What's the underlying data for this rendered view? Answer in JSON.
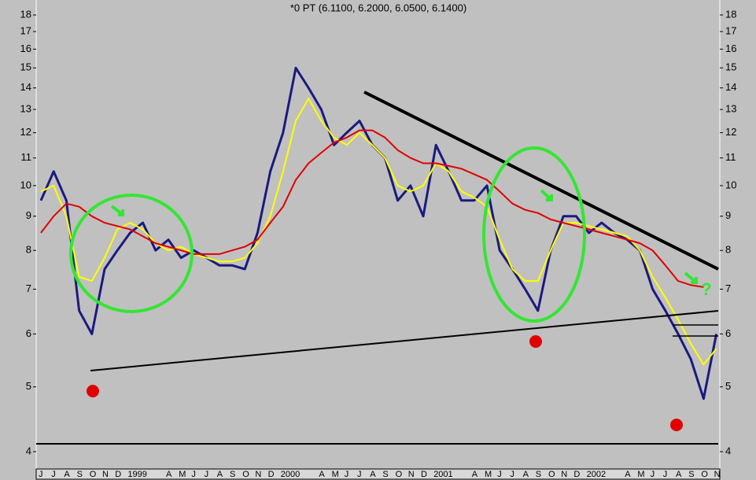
{
  "chart_data": {
    "type": "line",
    "title": "*0 PT (6.1100, 6.2000, 6.0500, 6.1400)",
    "log_scale": true,
    "grid": false,
    "categories": [
      "J",
      "J",
      "A",
      "S",
      "O",
      "N",
      "D",
      "1999",
      null,
      null,
      "A",
      "M",
      "J",
      "J",
      "A",
      "S",
      "O",
      "N",
      "D",
      "2000",
      null,
      null,
      "A",
      "M",
      "J",
      "J",
      "A",
      "S",
      "O",
      "N",
      "D",
      "2001",
      null,
      null,
      "A",
      "M",
      "J",
      "J",
      "A",
      "S",
      "O",
      "N",
      "D",
      "2002",
      null,
      null,
      "A",
      "M",
      "J",
      "J",
      "A",
      "S",
      "O",
      "N"
    ],
    "series": [
      {
        "color": "#1a1a80",
        "values": [
          9.5,
          10.5,
          9.5,
          6.5,
          6.0,
          7.5,
          8.0,
          8.5,
          8.8,
          8.0,
          8.3,
          7.8,
          8.0,
          7.8,
          7.6,
          7.6,
          7.5,
          8.5,
          10.5,
          12.0,
          15.0,
          14.0,
          13.0,
          11.5,
          12.0,
          12.5,
          11.5,
          11.0,
          9.5,
          10.0,
          9.0,
          11.5,
          10.5,
          9.5,
          9.5,
          10.0,
          8.0,
          7.5,
          7.0,
          6.5,
          8.0,
          9.0,
          9.0,
          8.5,
          8.8,
          8.5,
          8.3,
          8.0,
          7.0,
          6.5,
          6.0,
          5.5,
          4.8,
          6.0
        ]
      },
      {
        "color": "#ffff00",
        "values": [
          9.8,
          10.0,
          9.0,
          7.3,
          7.2,
          7.8,
          8.6,
          8.8,
          8.6,
          8.2,
          8.0,
          8.1,
          7.9,
          7.8,
          7.7,
          7.7,
          7.8,
          8.2,
          9.0,
          10.5,
          12.5,
          13.5,
          12.5,
          11.8,
          11.5,
          12.0,
          11.5,
          11.0,
          10.0,
          9.8,
          10.0,
          10.8,
          10.5,
          9.8,
          9.6,
          9.3,
          8.3,
          7.5,
          7.2,
          7.2,
          8.0,
          8.8,
          8.8,
          8.7,
          8.6,
          8.5,
          8.4,
          8.0,
          7.3,
          6.8,
          6.3,
          5.8,
          5.4,
          5.7
        ]
      },
      {
        "color": "#e00000",
        "values": [
          8.5,
          9.0,
          9.4,
          9.3,
          9.0,
          8.8,
          8.7,
          8.6,
          8.4,
          8.2,
          8.1,
          8.0,
          7.9,
          7.9,
          7.9,
          8.0,
          8.1,
          8.3,
          8.8,
          9.3,
          10.2,
          10.8,
          11.2,
          11.6,
          11.8,
          12.1,
          12.1,
          11.8,
          11.3,
          11.0,
          10.8,
          10.8,
          10.7,
          10.6,
          10.4,
          10.2,
          9.8,
          9.4,
          9.2,
          9.1,
          8.9,
          8.8,
          8.7,
          8.6,
          8.5,
          8.4,
          8.3,
          8.2,
          8.0,
          7.6,
          7.2,
          7.1,
          7.05,
          null
        ]
      }
    ],
    "ylim": [
      4,
      18
    ],
    "yticks": [
      4,
      5,
      6,
      7,
      8,
      9,
      10,
      11,
      12,
      13,
      14,
      15,
      16,
      17,
      18
    ],
    "annotations": [
      "?"
    ]
  }
}
